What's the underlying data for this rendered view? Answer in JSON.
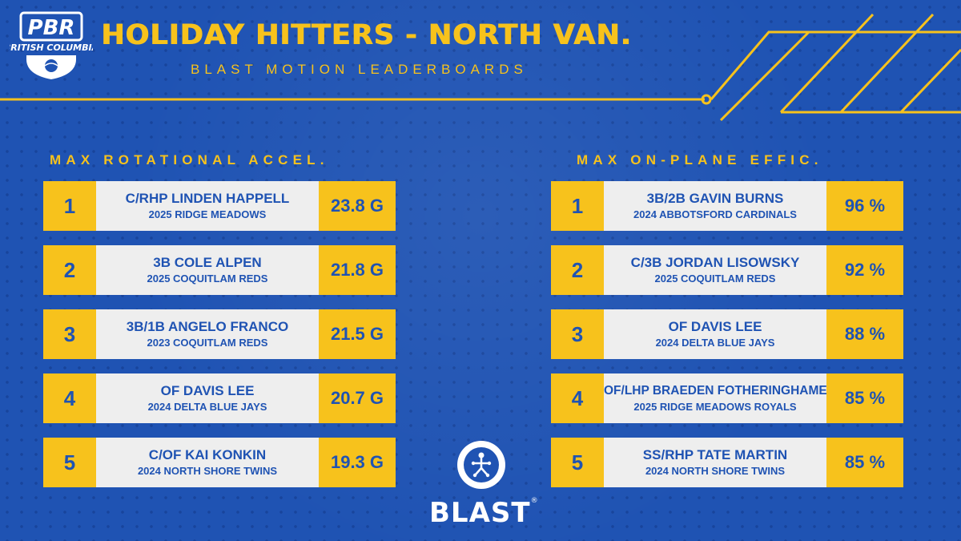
{
  "logo": {
    "top_text": "PBR",
    "bottom_text": "BRITISH COLUMBIA"
  },
  "header": {
    "title": "HOLIDAY HITTERS - NORTH VAN.",
    "subtitle": "BLAST MOTION LEADERBOARDS"
  },
  "colors": {
    "background": "#1f53b3",
    "accent": "#f7c21c",
    "card": "#eeeeee"
  },
  "left_board": {
    "title": "MAX ROTATIONAL ACCEL.",
    "rows": [
      {
        "rank": "1",
        "name": "C/RHP LINDEN HAPPELL",
        "team": "2025 RIDGE MEADOWS",
        "value": "23.8 G"
      },
      {
        "rank": "2",
        "name": "3B COLE ALPEN",
        "team": "2025 COQUITLAM REDS",
        "value": "21.8 G"
      },
      {
        "rank": "3",
        "name": "3B/1B ANGELO FRANCO",
        "team": "2023 COQUITLAM REDS",
        "value": "21.5 G"
      },
      {
        "rank": "4",
        "name": "OF DAVIS LEE",
        "team": "2024 DELTA BLUE JAYS",
        "value": "20.7 G"
      },
      {
        "rank": "5",
        "name": "C/OF KAI KONKIN",
        "team": "2024 NORTH SHORE TWINS",
        "value": "19.3 G"
      }
    ]
  },
  "right_board": {
    "title": "MAX ON-PLANE EFFIC.",
    "rows": [
      {
        "rank": "1",
        "name": "3B/2B GAVIN BURNS",
        "team": "2024 ABBOTSFORD CARDINALS",
        "value": "96 %"
      },
      {
        "rank": "2",
        "name": "C/3B JORDAN LISOWSKY",
        "team": "2025 COQUITLAM REDS",
        "value": "92 %"
      },
      {
        "rank": "3",
        "name": "OF DAVIS LEE",
        "team": "2024 DELTA BLUE JAYS",
        "value": "88 %"
      },
      {
        "rank": "4",
        "name": "OF/LHP BRAEDEN FOTHERINGHAME",
        "team": "2025 RIDGE MEADOWS ROYALS",
        "value": "85 %"
      },
      {
        "rank": "5",
        "name": "SS/RHP TATE MARTIN",
        "team": "2024 NORTH SHORE TWINS",
        "value": "85 %"
      }
    ]
  },
  "sponsor": {
    "name": "BLAST",
    "mark": "®",
    "icon": "blast-motion-icon"
  }
}
